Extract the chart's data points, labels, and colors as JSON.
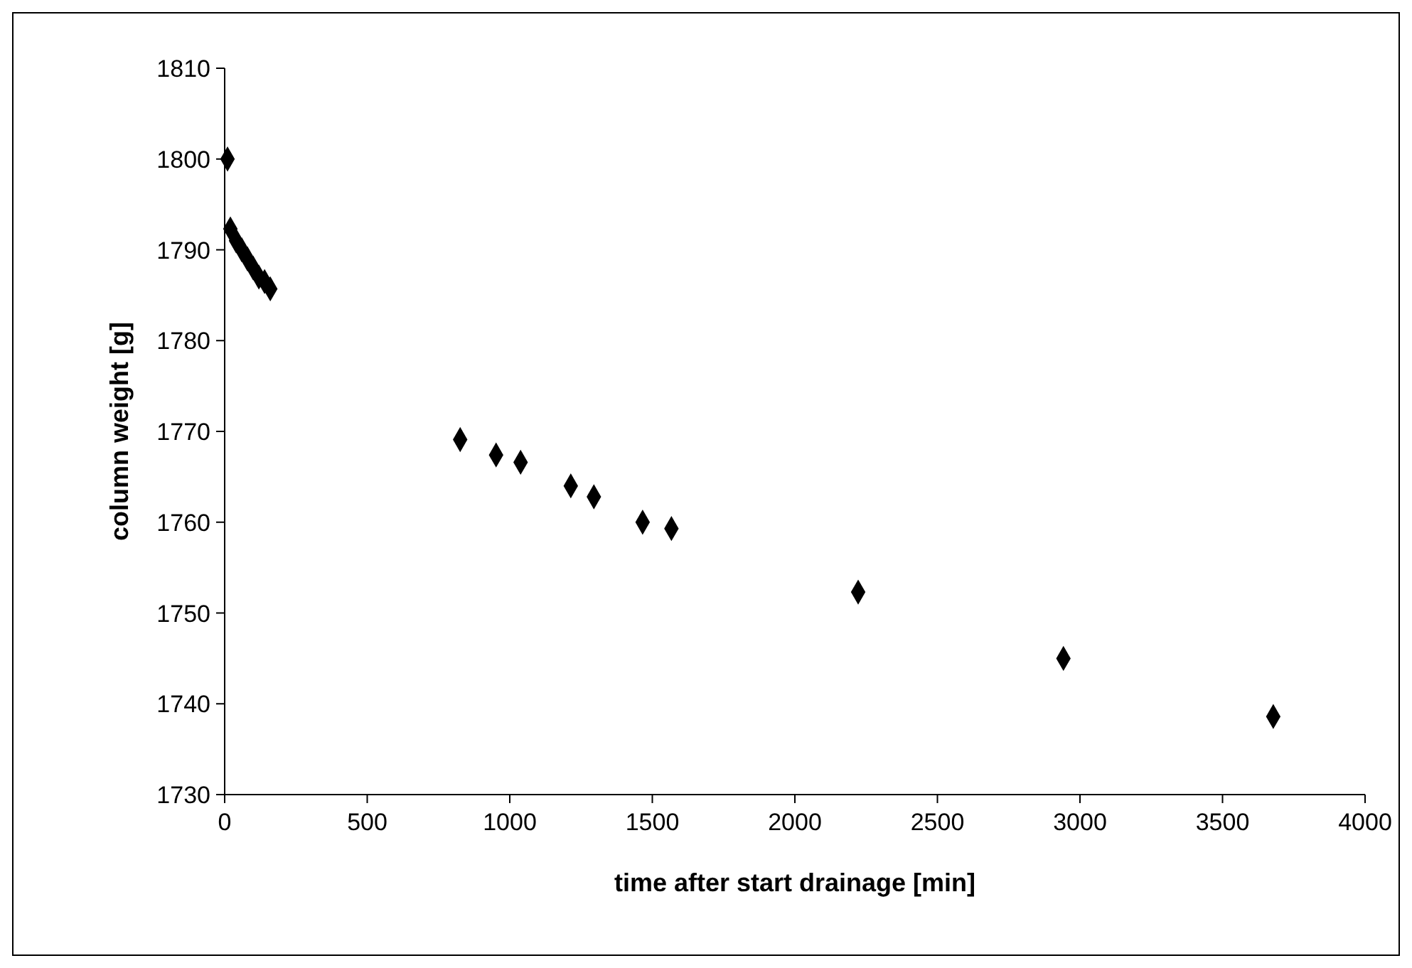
{
  "chart_data": {
    "type": "scatter",
    "xlabel": "time after start drainage [min]",
    "ylabel": "column weight [g]",
    "x": [
      10,
      20,
      40,
      60,
      80,
      100,
      120,
      140,
      160,
      826,
      952,
      1038,
      1214,
      1295,
      1466,
      1567,
      2222,
      2942,
      3678
    ],
    "values": [
      1800,
      1792.3,
      1791,
      1790,
      1789,
      1788,
      1787,
      1786.5,
      1785.7,
      1769.1,
      1767.4,
      1766.6,
      1764,
      1762.8,
      1760,
      1759.3,
      1752.3,
      1745,
      1738.6
    ],
    "color": "#000000",
    "marker": "diamond",
    "grid": false,
    "xlim": [
      0,
      4000
    ],
    "xticks": [
      0,
      500,
      1000,
      1500,
      2000,
      2500,
      3000,
      3500,
      4000
    ],
    "ylim": [
      1730,
      1810
    ],
    "yticks": [
      1730,
      1740,
      1750,
      1760,
      1770,
      1780,
      1790,
      1800,
      1810
    ]
  }
}
